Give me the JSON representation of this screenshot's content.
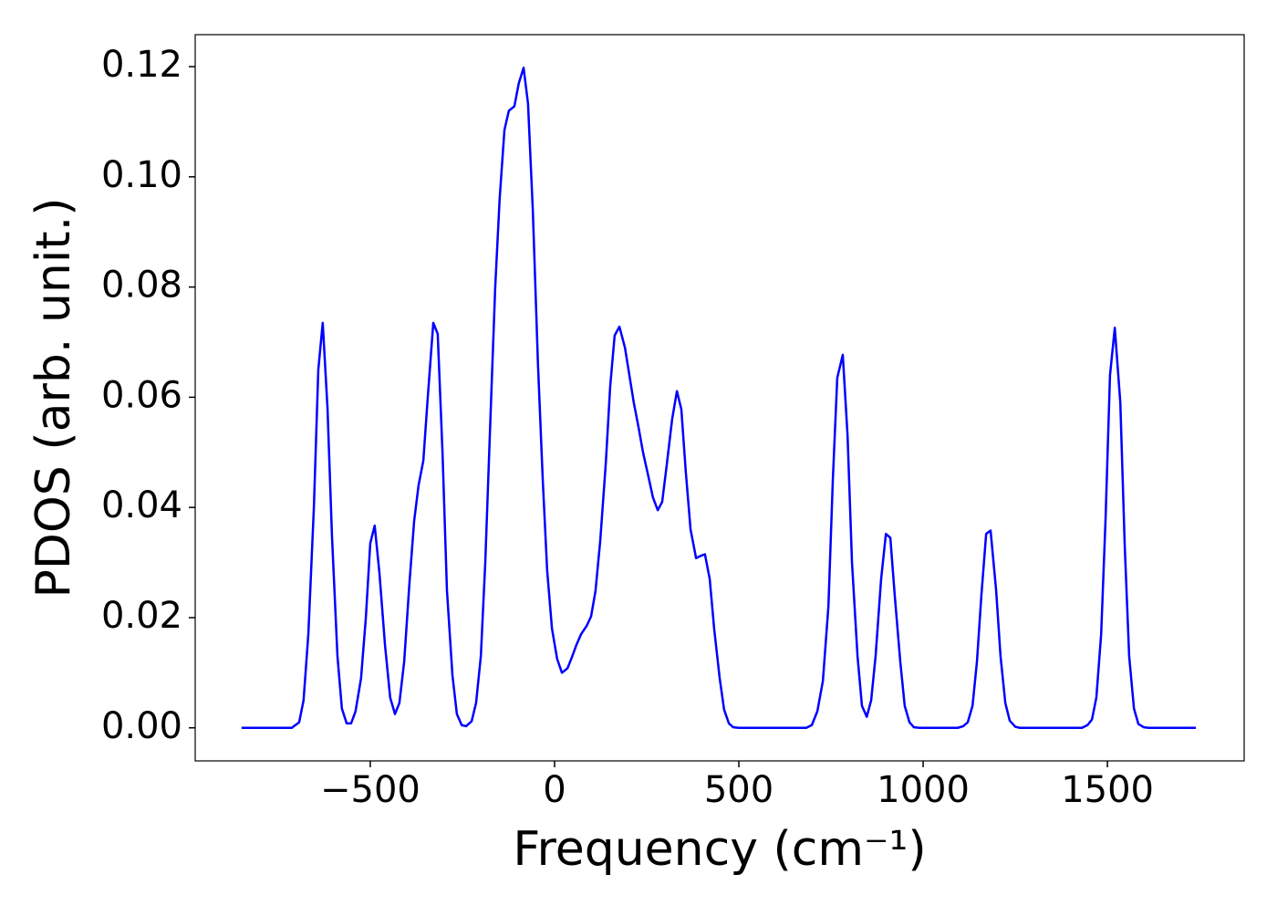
{
  "chart_data": {
    "type": "line",
    "xlabel": "Frequency (cm⁻¹)",
    "ylabel": "PDOS (arb. unit.)",
    "xlim": [
      -975,
      1871
    ],
    "ylim": [
      -0.006,
      0.1258
    ],
    "xticks": [
      {
        "value": -500,
        "label": "−500"
      },
      0,
      500,
      1000,
      1500
    ],
    "yticks": [
      {
        "value": 0,
        "label": "0.00"
      },
      {
        "value": 0.02,
        "label": "0.02"
      },
      {
        "value": 0.04,
        "label": "0.04"
      },
      {
        "value": 0.06,
        "label": "0.06"
      },
      {
        "value": 0.08,
        "label": "0.08"
      },
      {
        "value": 0.1,
        "label": "0.10"
      },
      {
        "value": 0.12,
        "label": "0.12"
      }
    ],
    "grid": false,
    "x": [
      -849,
      -713,
      -693,
      -681,
      -668,
      -653,
      -641,
      -629,
      -616,
      -604,
      -589,
      -577,
      -564,
      -552,
      -540,
      -525,
      -512,
      -500,
      -488,
      -475,
      -460,
      -446,
      -433,
      -421,
      -408,
      -394,
      -381,
      -369,
      -356,
      -344,
      -329,
      -317,
      -304,
      -292,
      -277,
      -265,
      -252,
      -240,
      -225,
      -213,
      -200,
      -188,
      -173,
      -161,
      -149,
      -136,
      -124,
      -109,
      -97,
      -84,
      -72,
      -59,
      -45,
      -32,
      -20,
      -7,
      7,
      20,
      35,
      47,
      59,
      72,
      87,
      99,
      111,
      124,
      139,
      151,
      163,
      176,
      191,
      203,
      215,
      228,
      240,
      255,
      267,
      280,
      292,
      304,
      319,
      332,
      344,
      356,
      369,
      384,
      396,
      408,
      421,
      433,
      448,
      460,
      473,
      485,
      500,
      683,
      698,
      713,
      728,
      743,
      755,
      767,
      782,
      795,
      807,
      822,
      834,
      847,
      859,
      871,
      886,
      899,
      911,
      923,
      938,
      950,
      963,
      975,
      990,
      1094,
      1109,
      1121,
      1134,
      1146,
      1158,
      1171,
      1183,
      1198,
      1210,
      1223,
      1235,
      1250,
      1262,
      1431,
      1446,
      1458,
      1470,
      1483,
      1495,
      1507,
      1520,
      1535,
      1547,
      1559,
      1572,
      1584,
      1599,
      1611,
      1740
    ],
    "series": [
      {
        "color": "#0000ff",
        "values": [
          0,
          0,
          0.001,
          0.005,
          0.017,
          0.04,
          0.065,
          0.0735,
          0.058,
          0.035,
          0.013,
          0.0035,
          0.0008,
          0.0008,
          0.003,
          0.009,
          0.02,
          0.0335,
          0.0367,
          0.028,
          0.015,
          0.0055,
          0.0025,
          0.0045,
          0.012,
          0.026,
          0.0375,
          0.044,
          0.0485,
          0.06,
          0.0735,
          0.0715,
          0.05,
          0.025,
          0.0095,
          0.0025,
          0.0005,
          0.0003,
          0.0012,
          0.0045,
          0.013,
          0.03,
          0.058,
          0.08,
          0.096,
          0.1085,
          0.112,
          0.1128,
          0.117,
          0.1198,
          0.1133,
          0.094,
          0.066,
          0.045,
          0.0285,
          0.018,
          0.0125,
          0.01,
          0.0108,
          0.0128,
          0.015,
          0.017,
          0.0185,
          0.0202,
          0.0248,
          0.034,
          0.048,
          0.062,
          0.0712,
          0.0728,
          0.069,
          0.064,
          0.059,
          0.0545,
          0.05,
          0.0455,
          0.0418,
          0.0395,
          0.041,
          0.0475,
          0.056,
          0.0611,
          0.0578,
          0.0465,
          0.036,
          0.0308,
          0.0312,
          0.0315,
          0.027,
          0.018,
          0.009,
          0.0033,
          0.0008,
          0.0001,
          0,
          0,
          0.0005,
          0.003,
          0.0085,
          0.022,
          0.045,
          0.0635,
          0.0677,
          0.053,
          0.03,
          0.013,
          0.004,
          0.002,
          0.005,
          0.013,
          0.027,
          0.0352,
          0.0345,
          0.024,
          0.012,
          0.004,
          0.001,
          0.0001,
          0,
          0,
          0.0003,
          0.001,
          0.004,
          0.012,
          0.024,
          0.0352,
          0.0358,
          0.025,
          0.013,
          0.0045,
          0.0013,
          0.0002,
          0,
          0,
          0.0005,
          0.0015,
          0.0055,
          0.017,
          0.038,
          0.064,
          0.0726,
          0.059,
          0.033,
          0.013,
          0.0035,
          0.0007,
          0.0001,
          0,
          0
        ]
      }
    ]
  }
}
